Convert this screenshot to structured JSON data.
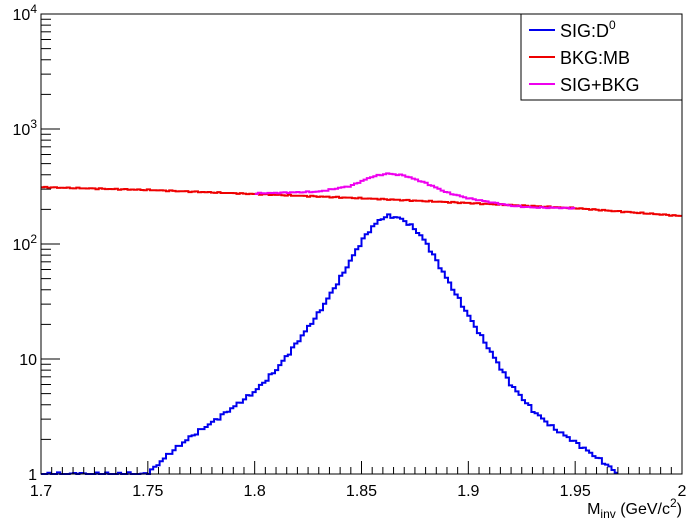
{
  "chart_data": {
    "type": "line",
    "style": "step-histogram",
    "xlabel": "M_inv (GeV/c^2)",
    "xlabel_parts": {
      "main": "M",
      "sub": "inv",
      "unit_open": " (GeV/c",
      "sup": "2",
      "unit_close": ")"
    },
    "xlim": [
      1.7,
      2.0
    ],
    "ylim": [
      1,
      10000
    ],
    "yscale": "log",
    "x_ticks": [
      "1.7",
      "1.75",
      "1.8",
      "1.85",
      "1.9",
      "1.95",
      "2"
    ],
    "x_tick_values": [
      1.7,
      1.75,
      1.8,
      1.85,
      1.9,
      1.95,
      2.0
    ],
    "y_ticks": [
      {
        "value": 1,
        "label": "1"
      },
      {
        "value": 10,
        "label": "10"
      },
      {
        "value": 100,
        "base": "10",
        "exp": "2"
      },
      {
        "value": 1000,
        "base": "10",
        "exp": "3"
      },
      {
        "value": 10000,
        "base": "10",
        "exp": "4"
      }
    ],
    "grid": false,
    "legend_position": "top-right",
    "legend": [
      {
        "label": "SIG:D",
        "sup": "0",
        "color": "#0000ee"
      },
      {
        "label": "BKG:MB",
        "color": "#ee0000"
      },
      {
        "label": "SIG+BKG",
        "color": "#ee00ee"
      }
    ],
    "series": [
      {
        "name": "SIG:D0",
        "color": "#0000ee",
        "points": [
          [
            1.7,
            1
          ],
          [
            1.75,
            1
          ],
          [
            1.76,
            1.5
          ],
          [
            1.77,
            2.1
          ],
          [
            1.78,
            2.8
          ],
          [
            1.79,
            3.8
          ],
          [
            1.8,
            5.2
          ],
          [
            1.81,
            8
          ],
          [
            1.82,
            14
          ],
          [
            1.83,
            25
          ],
          [
            1.84,
            50
          ],
          [
            1.85,
            105
          ],
          [
            1.855,
            140
          ],
          [
            1.86,
            170
          ],
          [
            1.863,
            175
          ],
          [
            1.867,
            170
          ],
          [
            1.87,
            160
          ],
          [
            1.875,
            135
          ],
          [
            1.88,
            105
          ],
          [
            1.89,
            50
          ],
          [
            1.9,
            24
          ],
          [
            1.91,
            12
          ],
          [
            1.92,
            6
          ],
          [
            1.93,
            3.6
          ],
          [
            1.94,
            2.5
          ],
          [
            1.95,
            1.9
          ],
          [
            1.96,
            1.4
          ],
          [
            1.965,
            1.2
          ],
          [
            1.97,
            1
          ]
        ]
      },
      {
        "name": "BKG:MB",
        "color": "#ee0000",
        "points": [
          [
            1.7,
            312
          ],
          [
            1.75,
            295
          ],
          [
            1.8,
            272
          ],
          [
            1.85,
            250
          ],
          [
            1.9,
            227
          ],
          [
            1.95,
            205
          ],
          [
            2.0,
            175
          ]
        ]
      },
      {
        "name": "SIG+BKG",
        "color": "#ee00ee",
        "points": [
          [
            1.8,
            275
          ],
          [
            1.83,
            285
          ],
          [
            1.845,
            320
          ],
          [
            1.855,
            385
          ],
          [
            1.862,
            410
          ],
          [
            1.87,
            395
          ],
          [
            1.88,
            340
          ],
          [
            1.89,
            280
          ],
          [
            1.9,
            250
          ],
          [
            1.92,
            215
          ],
          [
            1.93,
            208
          ],
          [
            1.95,
            205
          ]
        ]
      }
    ]
  }
}
